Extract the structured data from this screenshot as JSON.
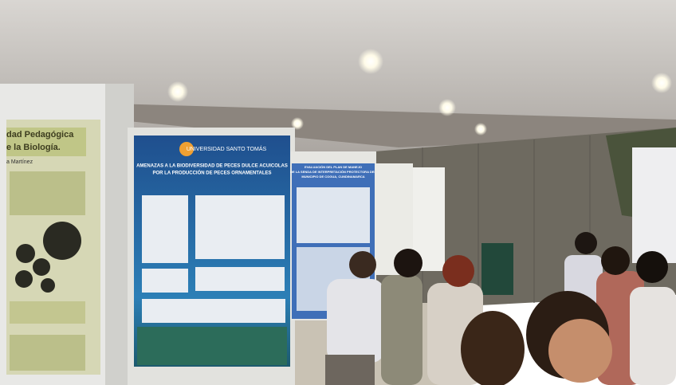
{
  "left_poster": {
    "title_lines": [
      "dad Pedagógica",
      "e la Biología."
    ],
    "author": "a Martínez"
  },
  "center_poster": {
    "institution": "UNIVERSIDAD SANTO TOMÁS",
    "title_lines": [
      "AMENAZAS A LA BIODIVERSIDAD DE PECES DULCE ACUICOLAS",
      "POR LA PRODUCCIÓN DE PECES ORNAMENTALES"
    ]
  },
  "second_poster": {
    "title_lines": [
      "EVALUACIÓN DEL PLAN DE MANEJO",
      "DE LA SENDA DE INTERPRETACIÓN PROTECTORA DEL",
      "MUNICIPIO DE COGUA, CUNDINAMARCA"
    ]
  }
}
